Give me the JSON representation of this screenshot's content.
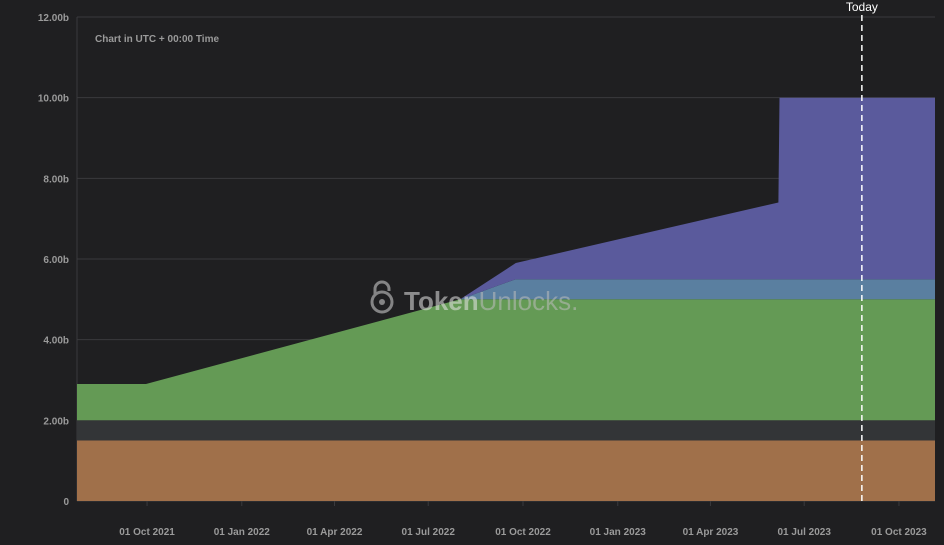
{
  "chart_note": "Chart in UTC + 00:00 Time",
  "today_label": "Today",
  "watermark": {
    "brand": "TokenUnlocks",
    "bold_part": "Token",
    "light_part": "Unlocks",
    "suffix": "."
  },
  "colors": {
    "background": "#1f1f21",
    "grid": "#3a3a3d",
    "axis_text": "#9a9a9a",
    "today_line": "#ffffff",
    "series": [
      "#a0704a",
      "#333537",
      "#649a55",
      "#5a7fa0",
      "#5a5a9c"
    ]
  },
  "chart_data": {
    "type": "area",
    "stacked": true,
    "title": "",
    "xlabel": "",
    "ylabel": "",
    "ylim": [
      0,
      12000000000
    ],
    "xlim": [
      "2021-07-25",
      "2023-11-05"
    ],
    "y_ticks": [
      {
        "value": 0,
        "label": "0"
      },
      {
        "value": 2000000000,
        "label": "2.00b"
      },
      {
        "value": 4000000000,
        "label": "4.00b"
      },
      {
        "value": 6000000000,
        "label": "6.00b"
      },
      {
        "value": 8000000000,
        "label": "8.00b"
      },
      {
        "value": 10000000000,
        "label": "10.00b"
      },
      {
        "value": 12000000000,
        "label": "12.00b"
      }
    ],
    "x_ticks": [
      {
        "date": "2021-10-01",
        "label": "01 Oct 2021"
      },
      {
        "date": "2022-01-01",
        "label": "01 Jan 2022"
      },
      {
        "date": "2022-04-01",
        "label": "01 Apr 2022"
      },
      {
        "date": "2022-07-01",
        "label": "01 Jul 2022"
      },
      {
        "date": "2022-10-01",
        "label": "01 Oct 2022"
      },
      {
        "date": "2023-01-01",
        "label": "01 Jan 2023"
      },
      {
        "date": "2023-04-01",
        "label": "01 Apr 2023"
      },
      {
        "date": "2023-07-01",
        "label": "01 Jul 2023"
      },
      {
        "date": "2023-10-01",
        "label": "01 Oct 2023"
      }
    ],
    "today": "2023-08-26",
    "grid": true,
    "legend": false,
    "series": [
      {
        "values": [
          {
            "x": "2021-07-25",
            "y": 1500000000.0
          },
          {
            "x": "2023-11-05",
            "y": 1500000000.0
          }
        ]
      },
      {
        "values": [
          {
            "x": "2021-07-25",
            "y": 500000000.0
          },
          {
            "x": "2023-11-05",
            "y": 500000000.0
          }
        ]
      },
      {
        "values": [
          {
            "x": "2021-07-25",
            "y": 900000000.0
          },
          {
            "x": "2021-09-30",
            "y": 900000000.0
          },
          {
            "x": "2022-08-01",
            "y": 3000000000.0
          },
          {
            "x": "2022-09-24",
            "y": 3000000000.0
          },
          {
            "x": "2023-11-05",
            "y": 3000000000.0
          }
        ]
      },
      {
        "values": [
          {
            "x": "2021-07-25",
            "y": 0
          },
          {
            "x": "2021-09-30",
            "y": 0
          },
          {
            "x": "2022-08-01",
            "y": 0
          },
          {
            "x": "2022-09-24",
            "y": 500000000.0
          },
          {
            "x": "2023-11-05",
            "y": 500000000.0
          }
        ]
      },
      {
        "values": [
          {
            "x": "2021-07-25",
            "y": 0
          },
          {
            "x": "2021-09-30",
            "y": 0
          },
          {
            "x": "2022-08-01",
            "y": 0
          },
          {
            "x": "2022-09-24",
            "y": 400000000.0
          },
          {
            "x": "2023-06-06",
            "y": 1900000000.0
          },
          {
            "x": "2023-06-07",
            "y": 4500000000.0
          },
          {
            "x": "2023-11-05",
            "y": 4500000000.0
          }
        ]
      }
    ]
  }
}
